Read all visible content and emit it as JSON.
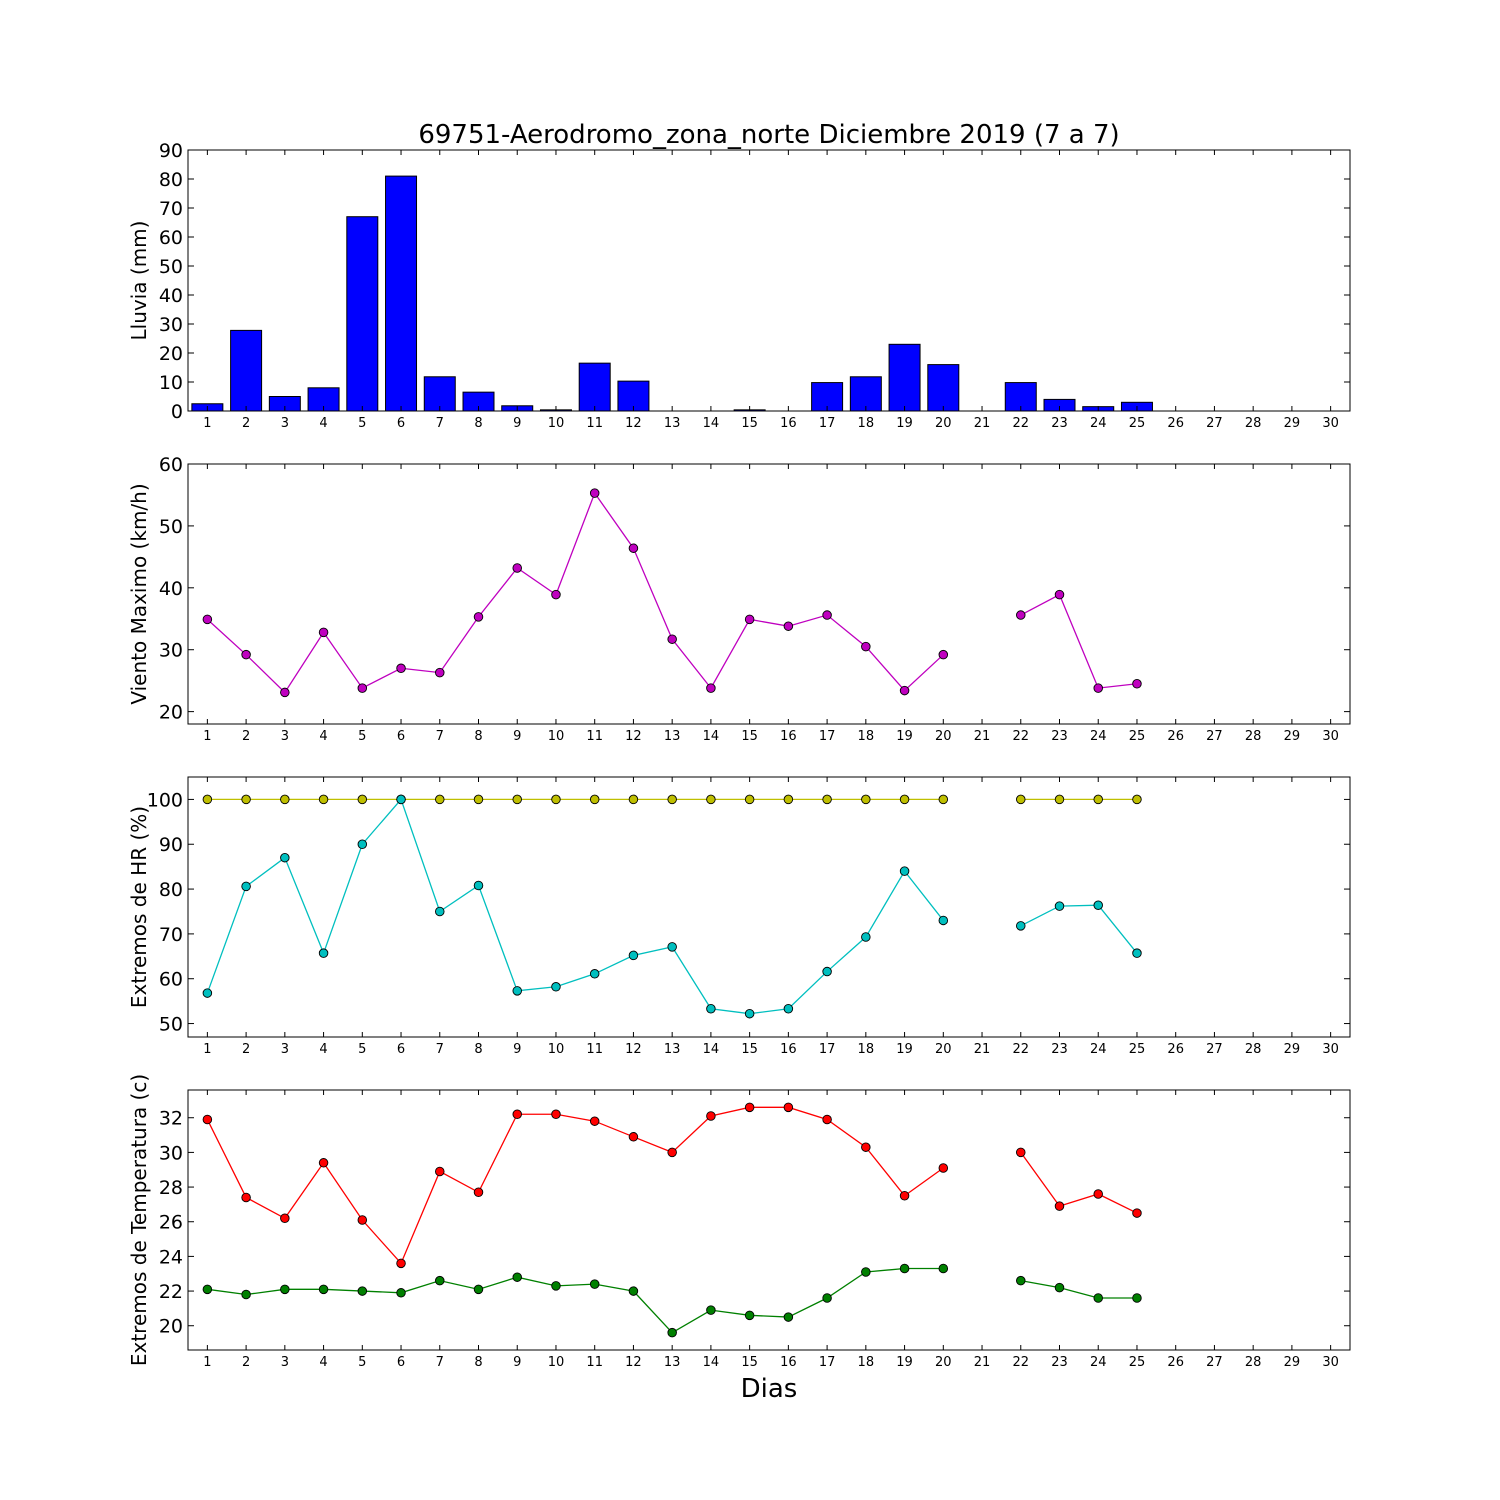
{
  "figure": {
    "title": "69751-Aerodromo_zona_norte Diciembre 2019  (7 a 7)",
    "xlabel": "Dias"
  },
  "chart_data": [
    {
      "type": "bar",
      "ylabel": "Lluvia (mm)",
      "ylim": [
        0,
        90
      ],
      "yticks": [
        0,
        10,
        20,
        30,
        40,
        50,
        60,
        70,
        80,
        90
      ],
      "xlim": [
        0.5,
        30.5
      ],
      "categories": [
        1,
        2,
        3,
        4,
        5,
        6,
        7,
        8,
        9,
        10,
        11,
        12,
        13,
        14,
        15,
        16,
        17,
        18,
        19,
        20,
        21,
        22,
        23,
        24,
        25,
        26,
        27,
        28,
        29,
        30
      ],
      "series": [
        {
          "color": "#0000ff",
          "values": [
            2.5,
            27.8,
            5,
            8,
            67,
            81,
            11.8,
            6.5,
            1.8,
            0.4,
            16.5,
            10.3,
            0,
            0,
            0.4,
            0,
            9.8,
            11.8,
            23,
            16,
            0,
            9.8,
            4,
            1.5,
            3,
            null,
            null,
            null,
            null,
            null
          ]
        }
      ]
    },
    {
      "type": "line",
      "ylabel": "Viento Maximo (km/h)",
      "ylim": [
        18,
        60
      ],
      "yticks": [
        20,
        30,
        40,
        50,
        60
      ],
      "xlim": [
        0.5,
        30.5
      ],
      "x": [
        1,
        2,
        3,
        4,
        5,
        6,
        7,
        8,
        9,
        10,
        11,
        12,
        13,
        14,
        15,
        16,
        17,
        18,
        19,
        20,
        21,
        22,
        23,
        24,
        25,
        26,
        27,
        28,
        29,
        30
      ],
      "series": [
        {
          "color": "#bf00bf",
          "values": [
            34.9,
            29.2,
            23.1,
            32.8,
            23.8,
            27.0,
            26.3,
            35.3,
            43.2,
            38.9,
            55.3,
            46.4,
            31.7,
            23.8,
            34.9,
            33.8,
            35.6,
            30.5,
            23.4,
            29.2,
            null,
            35.6,
            38.9,
            23.8,
            24.5,
            null,
            null,
            null,
            null,
            null
          ]
        }
      ]
    },
    {
      "type": "line",
      "ylabel": "Extremos de HR (%)",
      "ylim": [
        47,
        105
      ],
      "yticks": [
        50,
        60,
        70,
        80,
        90,
        100
      ],
      "xlim": [
        0.5,
        30.5
      ],
      "x": [
        1,
        2,
        3,
        4,
        5,
        6,
        7,
        8,
        9,
        10,
        11,
        12,
        13,
        14,
        15,
        16,
        17,
        18,
        19,
        20,
        21,
        22,
        23,
        24,
        25,
        26,
        27,
        28,
        29,
        30
      ],
      "series": [
        {
          "color": "#bfbf00",
          "values": [
            100,
            100,
            100,
            100,
            100,
            100,
            100,
            100,
            100,
            100,
            100,
            100,
            100,
            100,
            100,
            100,
            100,
            100,
            100,
            100,
            null,
            100,
            100,
            100,
            100,
            null,
            null,
            null,
            null,
            null
          ]
        },
        {
          "color": "#00bfbf",
          "values": [
            56.8,
            80.6,
            87.0,
            65.7,
            90.0,
            100.0,
            75.0,
            80.8,
            57.3,
            58.2,
            61.1,
            65.2,
            67.1,
            53.3,
            52.2,
            53.3,
            61.6,
            69.3,
            84.0,
            73.0,
            null,
            71.8,
            76.2,
            76.4,
            65.7,
            null,
            null,
            null,
            null,
            null
          ]
        }
      ]
    },
    {
      "type": "line",
      "ylabel": "Extremos de Temperatura (c)",
      "ylim": [
        18.6,
        33.6
      ],
      "yticks": [
        20,
        22,
        24,
        26,
        28,
        30,
        32
      ],
      "xlim": [
        0.5,
        30.5
      ],
      "x": [
        1,
        2,
        3,
        4,
        5,
        6,
        7,
        8,
        9,
        10,
        11,
        12,
        13,
        14,
        15,
        16,
        17,
        18,
        19,
        20,
        21,
        22,
        23,
        24,
        25,
        26,
        27,
        28,
        29,
        30
      ],
      "series": [
        {
          "color": "#ff0000",
          "values": [
            31.9,
            27.4,
            26.2,
            29.4,
            26.1,
            23.6,
            28.9,
            27.7,
            32.2,
            32.2,
            31.8,
            30.9,
            30.0,
            32.1,
            32.6,
            32.6,
            31.9,
            30.3,
            27.5,
            29.1,
            null,
            30.0,
            26.9,
            27.6,
            26.5,
            null,
            null,
            null,
            null,
            null
          ]
        },
        {
          "color": "#008000",
          "values": [
            22.1,
            21.8,
            22.1,
            22.1,
            22.0,
            21.9,
            22.6,
            22.1,
            22.8,
            22.3,
            22.4,
            22.0,
            19.6,
            20.9,
            20.6,
            20.5,
            21.6,
            23.1,
            23.3,
            23.3,
            null,
            22.6,
            22.2,
            21.6,
            21.6,
            null,
            null,
            null,
            null,
            null
          ]
        }
      ]
    }
  ]
}
